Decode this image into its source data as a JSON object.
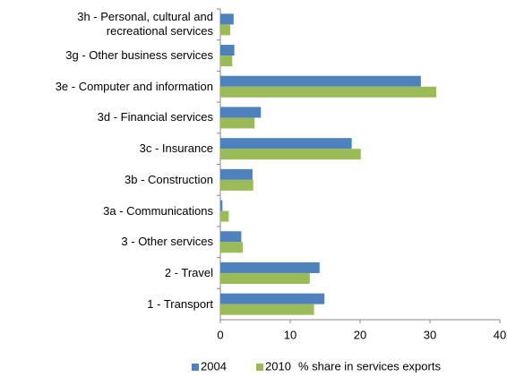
{
  "chart_data": {
    "type": "hbar",
    "categories": [
      "3h - Personal, cultural and recreational services",
      "3g - Other business services",
      "3e - Computer and information",
      "3d - Financial services",
      "3c - Insurance",
      "3b - Construction",
      "3a - Communications",
      "3 - Other services",
      "2 - Travel",
      "1 - Transport"
    ],
    "series": [
      {
        "name": "2004",
        "color": "#4f81bd",
        "values": [
          1.9,
          2.0,
          28.7,
          5.8,
          18.8,
          4.6,
          0.3,
          3.0,
          14.2,
          14.9
        ]
      },
      {
        "name": "2010",
        "color": "#9bbb59",
        "values": [
          1.4,
          1.7,
          30.9,
          4.9,
          20.1,
          4.7,
          1.2,
          3.2,
          12.8,
          13.4
        ]
      }
    ],
    "xlabel": "% share in services exports",
    "xlim": [
      0,
      40
    ],
    "xticks": [
      0,
      10,
      20,
      30,
      40
    ],
    "legend": "bottom"
  }
}
